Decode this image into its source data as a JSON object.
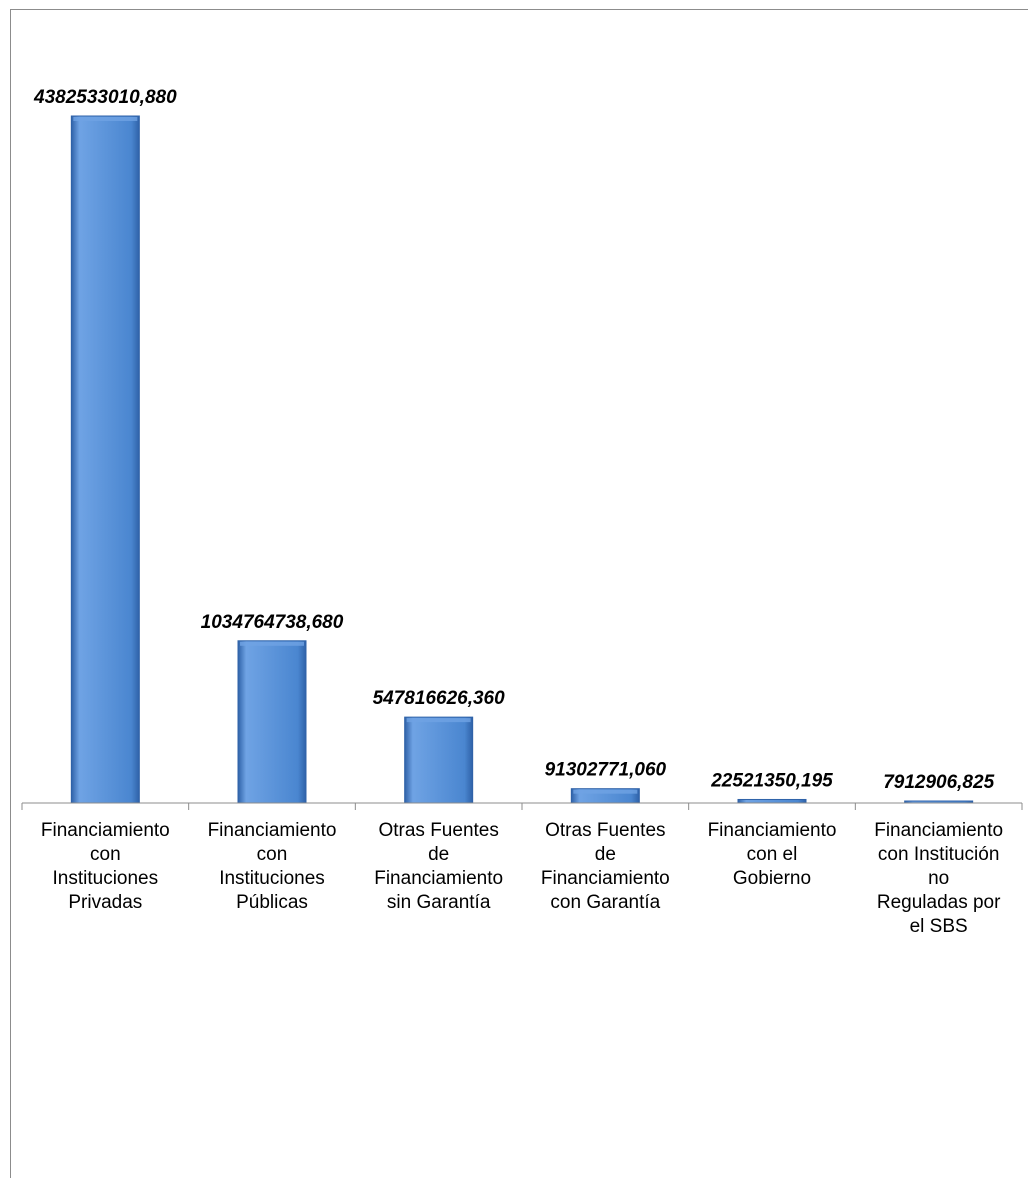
{
  "chart_data": {
    "type": "bar",
    "title": "",
    "xlabel": "",
    "ylabel": "",
    "categories": [
      [
        "Financiamiento",
        "con",
        "Instituciones",
        "Privadas"
      ],
      [
        "Financiamiento",
        "con",
        "Instituciones",
        "Públicas"
      ],
      [
        "Otras Fuentes",
        "de",
        "Financiamiento",
        "sin Garantía"
      ],
      [
        "Otras Fuentes",
        "de",
        "Financiamiento",
        "con Garantía"
      ],
      [
        "Financiamiento",
        "con el",
        "Gobierno"
      ],
      [
        "Financiamiento",
        "con Institución",
        "no",
        "Reguladas por",
        "el SBS"
      ]
    ],
    "values": [
      4382533010.88,
      1034764738.68,
      547816626.36,
      91302771.06,
      22521350.195,
      7912906.825
    ],
    "value_labels": [
      "4382533010,880",
      "1034764738,680",
      "547816626,360",
      "91302771,060",
      "22521350,195",
      "7912906,825"
    ],
    "ylim": [
      0,
      4382533010.88
    ],
    "grid": false,
    "legend": "none",
    "colors": {
      "bar_main": "#4a86d0",
      "bar_light": "#6fa3e4",
      "bar_dark": "#2f62a8",
      "axis": "#8c8c8c"
    }
  }
}
